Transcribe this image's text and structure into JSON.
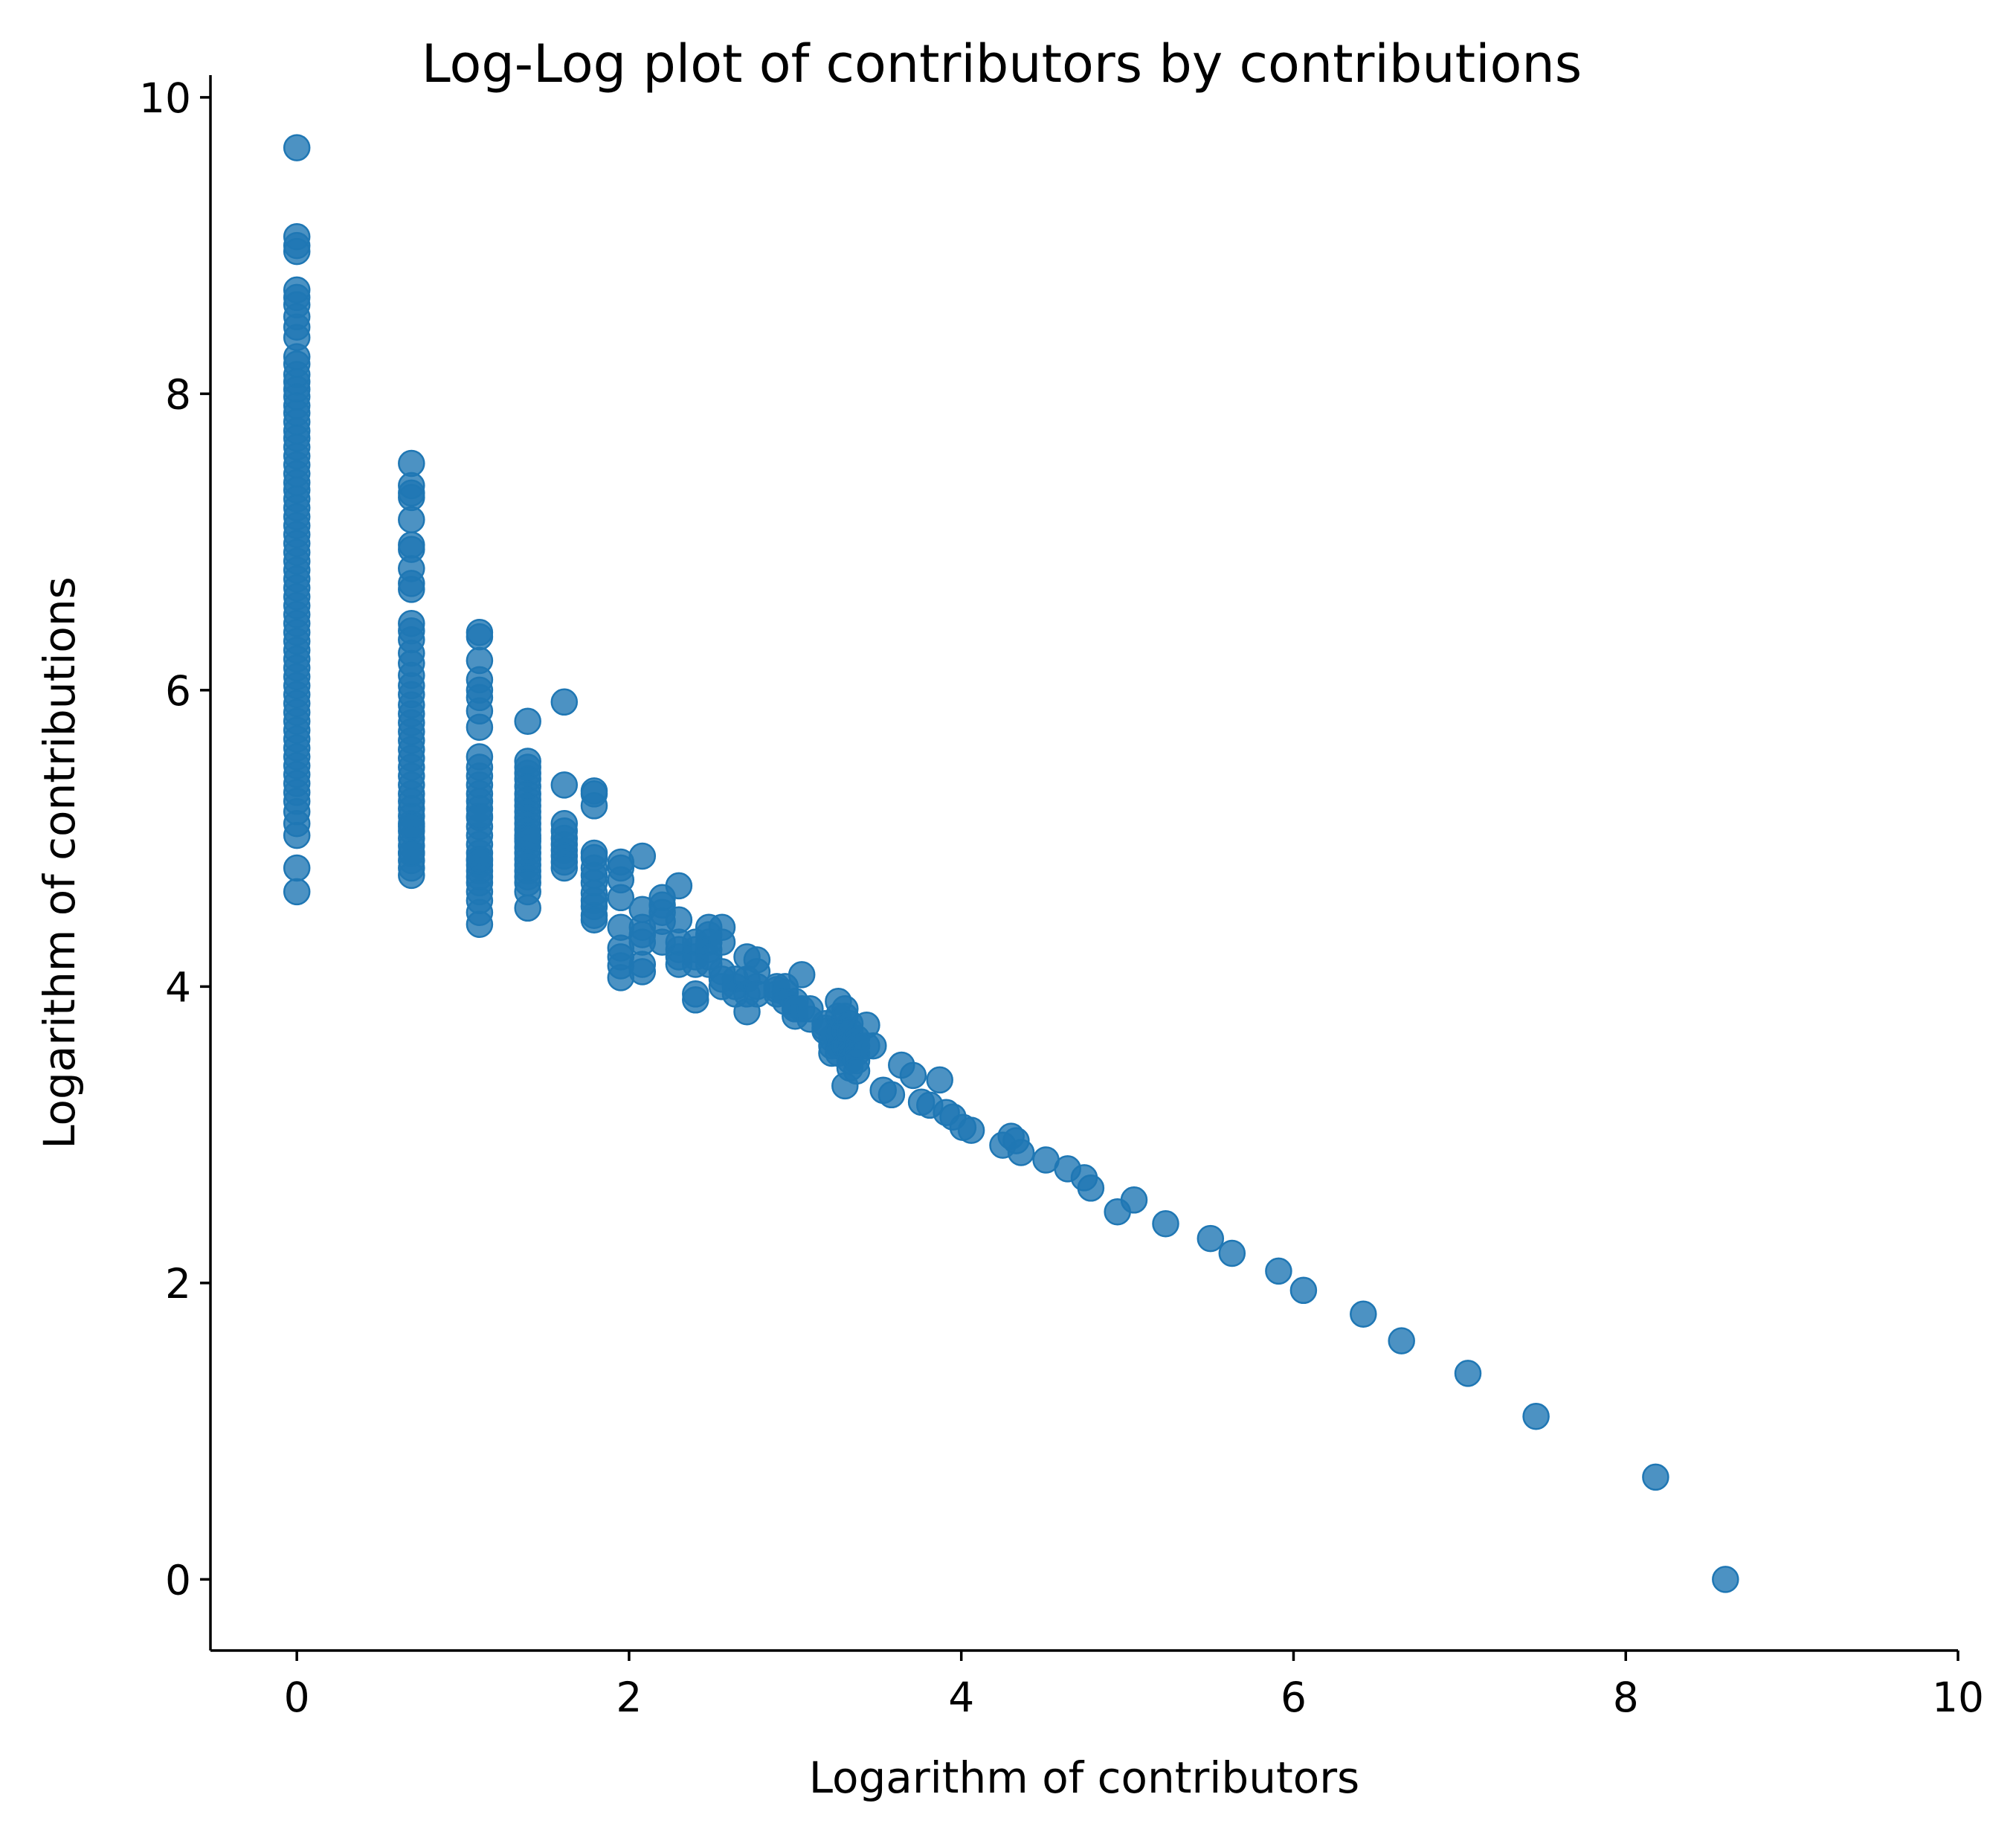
{
  "chart_data": {
    "type": "scatter",
    "title": "Log-Log plot of contributors by contributions",
    "xlabel": "Logarithm of contributors",
    "ylabel": "Logarithm of contributions",
    "xlim": [
      -0.52,
      10
    ],
    "ylim": [
      -0.48,
      10.15
    ],
    "xticks": [
      0,
      2,
      4,
      6,
      8,
      10
    ],
    "yticks": [
      0,
      2,
      4,
      6,
      8,
      10
    ],
    "grid": false,
    "legend": "none",
    "series": [
      {
        "color": "#1f77b4",
        "x": [
          0,
          0,
          0,
          0,
          0,
          0,
          0,
          0,
          0,
          0,
          0,
          0,
          0,
          0,
          0,
          0,
          0,
          0,
          0,
          0,
          0,
          0,
          0,
          0,
          0,
          0,
          0,
          0,
          0,
          0,
          0,
          0,
          0,
          0,
          0,
          0,
          0,
          0,
          0,
          0,
          0,
          0,
          0,
          0,
          0,
          0,
          0,
          0,
          0,
          0,
          0,
          0,
          0,
          0,
          0,
          0,
          0,
          0,
          0,
          0,
          0,
          0,
          0,
          0,
          0,
          0,
          0,
          0.69,
          0.69,
          0.69,
          0.69,
          0.69,
          0.69,
          0.69,
          0.69,
          0.69,
          0.69,
          0.69,
          0.69,
          0.69,
          0.69,
          0.69,
          0.69,
          0.69,
          0.69,
          0.69,
          0.69,
          0.69,
          0.69,
          0.69,
          0.69,
          0.69,
          0.69,
          0.69,
          0.69,
          0.69,
          0.69,
          0.69,
          0.69,
          0.69,
          0.69,
          0.69,
          0.69,
          0.69,
          0.69,
          0.69,
          0.69,
          0.69,
          0.69,
          1.1,
          1.1,
          1.1,
          1.1,
          1.1,
          1.1,
          1.1,
          1.1,
          1.1,
          1.1,
          1.1,
          1.1,
          1.1,
          1.1,
          1.1,
          1.1,
          1.1,
          1.1,
          1.1,
          1.1,
          1.1,
          1.1,
          1.1,
          1.1,
          1.1,
          1.1,
          1.1,
          1.1,
          1.1,
          1.1,
          1.1,
          1.39,
          1.39,
          1.39,
          1.39,
          1.39,
          1.39,
          1.39,
          1.39,
          1.39,
          1.39,
          1.39,
          1.39,
          1.39,
          1.39,
          1.39,
          1.39,
          1.39,
          1.39,
          1.39,
          1.39,
          1.39,
          1.39,
          1.39,
          1.39,
          1.39,
          1.61,
          1.61,
          1.61,
          1.61,
          1.61,
          1.61,
          1.61,
          1.61,
          1.61,
          1.61,
          1.79,
          1.79,
          1.79,
          1.79,
          1.79,
          1.79,
          1.79,
          1.79,
          1.79,
          1.79,
          1.79,
          1.79,
          1.79,
          1.95,
          1.95,
          1.95,
          1.95,
          1.95,
          1.95,
          1.95,
          1.95,
          1.95,
          2.08,
          2.08,
          2.08,
          2.08,
          2.08,
          2.08,
          2.08,
          2.2,
          2.2,
          2.2,
          2.2,
          2.2,
          2.3,
          2.3,
          2.3,
          2.3,
          2.3,
          2.3,
          2.4,
          2.4,
          2.4,
          2.4,
          2.4,
          2.4,
          2.48,
          2.48,
          2.48,
          2.48,
          2.48,
          2.48,
          2.56,
          2.56,
          2.56,
          2.56,
          2.56,
          2.64,
          2.64,
          2.64,
          2.71,
          2.71,
          2.71,
          2.71,
          2.77,
          2.77,
          2.77,
          2.77,
          2.89,
          2.89,
          2.89,
          2.94,
          2.94,
          2.94,
          3.0,
          3.0,
          3.0,
          3.0,
          3.04,
          3.04,
          3.09,
          3.09,
          3.18,
          3.18,
          3.18,
          3.22,
          3.22,
          3.22,
          3.26,
          3.26,
          3.26,
          3.26,
          3.26,
          3.3,
          3.3,
          3.3,
          3.3,
          3.3,
          3.33,
          3.33,
          3.33,
          3.33,
          3.33,
          3.33,
          3.37,
          3.37,
          3.37,
          3.37,
          3.37,
          3.43,
          3.43,
          3.47,
          3.53,
          3.58,
          3.64,
          3.71,
          3.76,
          3.81,
          3.87,
          3.91,
          3.95,
          4.01,
          4.06,
          4.25,
          4.3,
          4.33,
          4.36,
          4.51,
          4.64,
          4.74,
          4.78,
          4.94,
          5.04,
          5.23,
          5.5,
          5.63,
          5.91,
          6.06,
          6.42,
          6.65,
          7.05,
          7.46,
          8.18,
          8.6
        ],
        "y": [
          9.66,
          9.06,
          9.0,
          8.96,
          8.7,
          8.65,
          8.6,
          8.52,
          8.45,
          8.38,
          8.25,
          8.2,
          8.13,
          8.08,
          8.03,
          7.98,
          7.92,
          7.87,
          7.81,
          7.75,
          7.7,
          7.64,
          7.58,
          7.52,
          7.46,
          7.4,
          7.35,
          7.29,
          7.23,
          7.17,
          7.11,
          7.05,
          6.99,
          6.93,
          6.87,
          6.81,
          6.75,
          6.69,
          6.63,
          6.57,
          6.51,
          6.45,
          6.39,
          6.33,
          6.27,
          6.21,
          6.15,
          6.09,
          6.03,
          5.97,
          5.91,
          5.85,
          5.79,
          5.73,
          5.67,
          5.61,
          5.55,
          5.49,
          5.43,
          5.37,
          5.31,
          5.25,
          5.18,
          5.1,
          5.02,
          4.8,
          4.64,
          7.53,
          7.38,
          7.33,
          7.3,
          7.15,
          6.98,
          6.95,
          6.82,
          6.72,
          6.68,
          6.45,
          6.4,
          6.34,
          6.25,
          6.18,
          6.1,
          6.03,
          5.97,
          5.9,
          5.84,
          5.78,
          5.72,
          5.66,
          5.6,
          5.54,
          5.48,
          5.42,
          5.36,
          5.3,
          5.25,
          5.2,
          5.15,
          5.1,
          5.05,
          5.0,
          4.95,
          4.9,
          4.85,
          4.8,
          4.75,
          5.08,
          4.9,
          6.39,
          6.36,
          6.2,
          6.07,
          6.0,
          5.95,
          5.86,
          5.75,
          5.55,
          5.48,
          5.42,
          5.36,
          5.3,
          5.25,
          5.2,
          5.14,
          5.08,
          5.02,
          4.96,
          4.9,
          4.86,
          4.82,
          4.78,
          4.74,
          4.7,
          4.64,
          4.58,
          4.5,
          4.42,
          4.85,
          5.15,
          5.79,
          5.52,
          5.48,
          5.44,
          5.4,
          5.35,
          5.3,
          5.26,
          5.22,
          5.18,
          5.14,
          5.1,
          5.06,
          5.02,
          4.98,
          4.94,
          4.9,
          4.86,
          4.82,
          4.78,
          4.74,
          4.7,
          4.64,
          4.53,
          5.0,
          5.92,
          5.36,
          5.1,
          5.05,
          5.0,
          4.96,
          4.92,
          4.88,
          4.84,
          4.8,
          5.32,
          5.3,
          5.22,
          4.9,
          4.87,
          4.8,
          4.75,
          4.7,
          4.63,
          4.58,
          4.54,
          4.48,
          4.45,
          4.84,
          4.8,
          4.72,
          4.6,
          4.4,
          4.26,
          4.2,
          4.14,
          4.06,
          4.88,
          4.52,
          4.4,
          4.35,
          4.3,
          4.15,
          4.1,
          4.6,
          4.55,
          4.5,
          4.44,
          4.3,
          4.68,
          4.45,
          4.3,
          4.25,
          4.2,
          4.15,
          4.3,
          4.25,
          4.2,
          4.15,
          3.95,
          3.91,
          4.4,
          4.35,
          4.3,
          4.25,
          4.2,
          4.15,
          4.4,
          4.3,
          4.1,
          4.05,
          4.0,
          4.0,
          4.05,
          3.95,
          4.2,
          4.05,
          3.95,
          3.83,
          4.18,
          4.1,
          4.0,
          3.95,
          3.98,
          4.0,
          3.95,
          3.96,
          4.0,
          3.9,
          3.9,
          3.85,
          3.8,
          3.85,
          4.08,
          3.85,
          3.85,
          3.78,
          3.75,
          3.72,
          3.7,
          3.6,
          3.55,
          3.65,
          3.9,
          3.8,
          3.7,
          3.6,
          3.55,
          3.85,
          3.8,
          3.7,
          3.6,
          3.33,
          3.75,
          3.7,
          3.6,
          3.55,
          3.5,
          3.45,
          3.65,
          3.6,
          3.55,
          3.5,
          3.43,
          3.74,
          3.6,
          3.6,
          3.3,
          3.27,
          3.47,
          3.4,
          3.22,
          3.2,
          3.37,
          3.15,
          3.12,
          3.05,
          3.03,
          2.93,
          2.99,
          2.96,
          2.88,
          2.83,
          2.77,
          2.71,
          2.64,
          2.48,
          2.56,
          2.4,
          2.3,
          2.2,
          2.08,
          1.95,
          1.79,
          1.61,
          1.39,
          1.1,
          0.69,
          0.0
        ]
      }
    ]
  }
}
